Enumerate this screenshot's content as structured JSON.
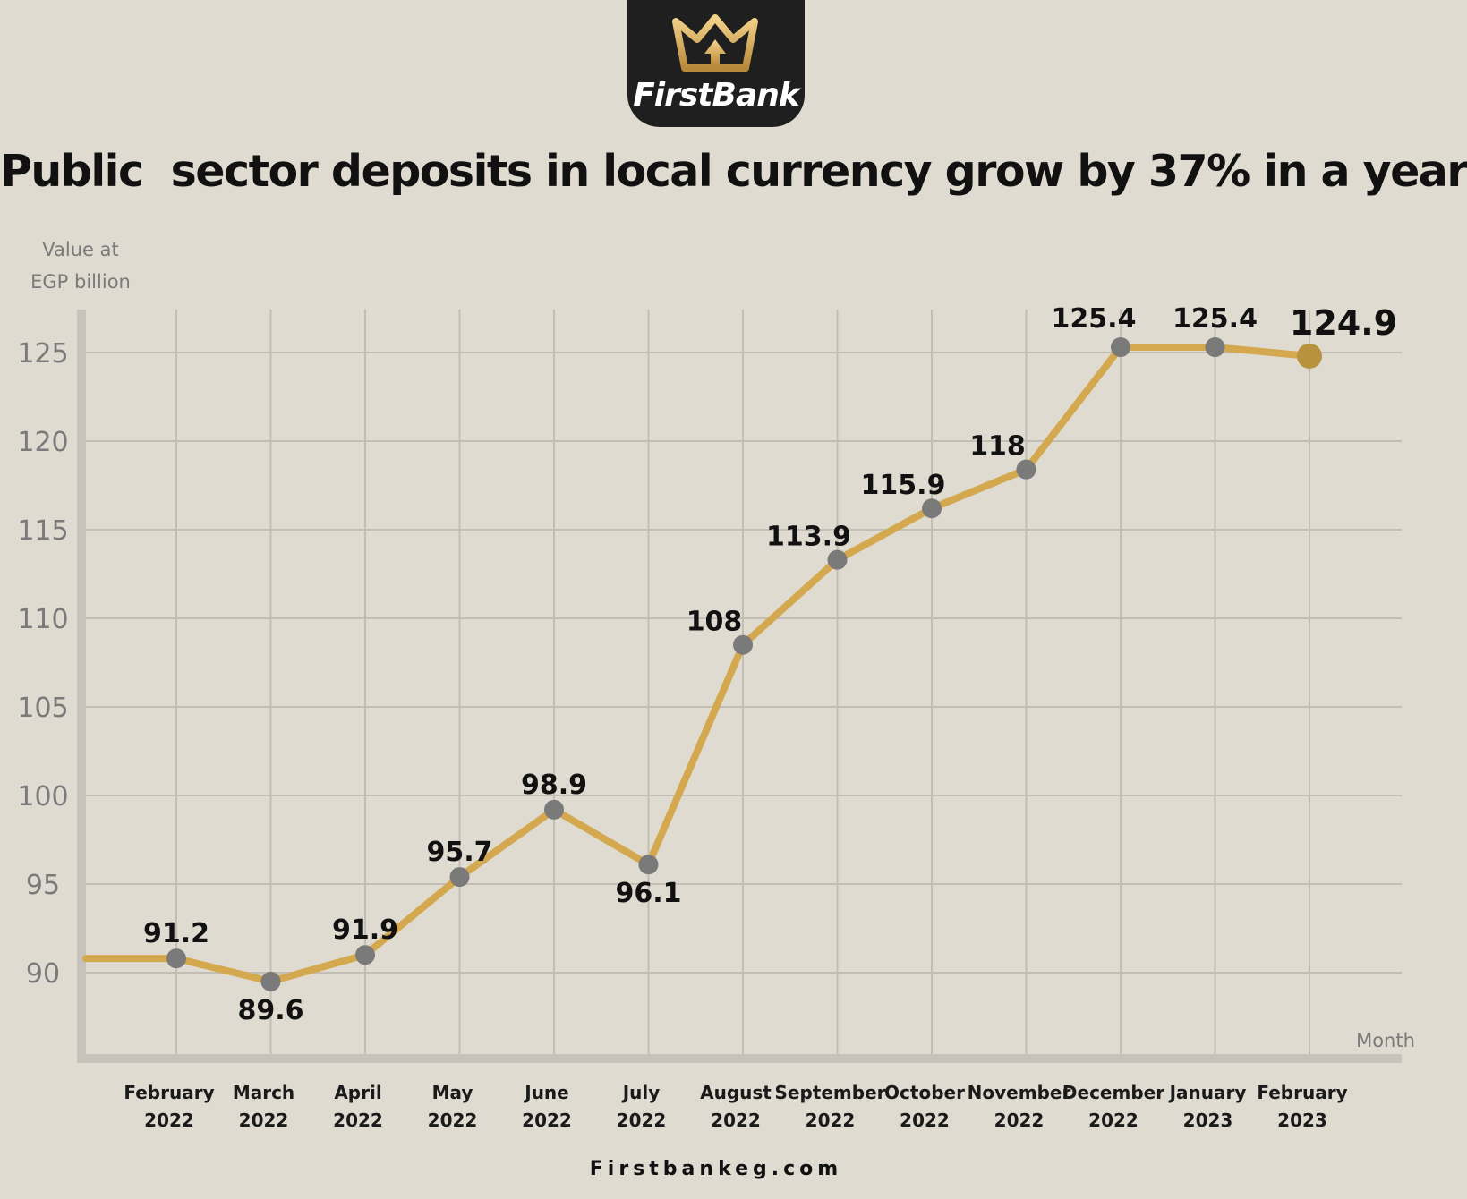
{
  "brand": {
    "name": "FirstBank",
    "website": "Firstbankeg.com",
    "colors": {
      "gold": "#d4a84e",
      "dark": "#1f1f1f",
      "background": "#dfdbd0"
    }
  },
  "chart_data": {
    "type": "line",
    "title": "Public  sector deposits in local currency grow by 37% in a year",
    "ylabel_lines": [
      "Value at",
      "EGP billion"
    ],
    "xlabel": "Month",
    "ylim": [
      86,
      128
    ],
    "yticks": [
      90,
      95,
      100,
      105,
      110,
      115,
      120,
      125
    ],
    "grid": true,
    "line_color": "#d4a84e",
    "marker_color": "#7a7a7a",
    "last_marker_color": "#b8923e",
    "categories": [
      [
        "February",
        "2022"
      ],
      [
        "March",
        "2022"
      ],
      [
        "April",
        "2022"
      ],
      [
        "May",
        "2022"
      ],
      [
        "June",
        "2022"
      ],
      [
        "July",
        "2022"
      ],
      [
        "August",
        "2022"
      ],
      [
        "September",
        "2022"
      ],
      [
        "October",
        "2022"
      ],
      [
        "November",
        "2022"
      ],
      [
        "December",
        "2022"
      ],
      [
        "January",
        "2023"
      ],
      [
        "February",
        "2023"
      ]
    ],
    "lead_in_value": 90.8,
    "values": [
      91.2,
      89.6,
      91.9,
      95.7,
      98.9,
      96.1,
      108,
      113.9,
      115.9,
      118,
      125.4,
      125.4,
      124.9
    ],
    "plot_values": [
      90.8,
      89.5,
      91.0,
      95.4,
      99.2,
      96.1,
      108.5,
      113.3,
      116.2,
      118.4,
      125.3,
      125.3,
      124.8
    ],
    "data_labels": [
      "91.2",
      "89.6",
      "91.9",
      "95.7",
      "98.9",
      "96.1",
      "108",
      "113.9",
      "115.9",
      "118",
      "125.4",
      "125.4",
      "124.9"
    ],
    "label_positions": [
      "above",
      "below",
      "above",
      "above",
      "above",
      "below",
      "above-left",
      "above-left",
      "above-left",
      "above-left",
      "above-left",
      "above",
      "above-right"
    ]
  }
}
